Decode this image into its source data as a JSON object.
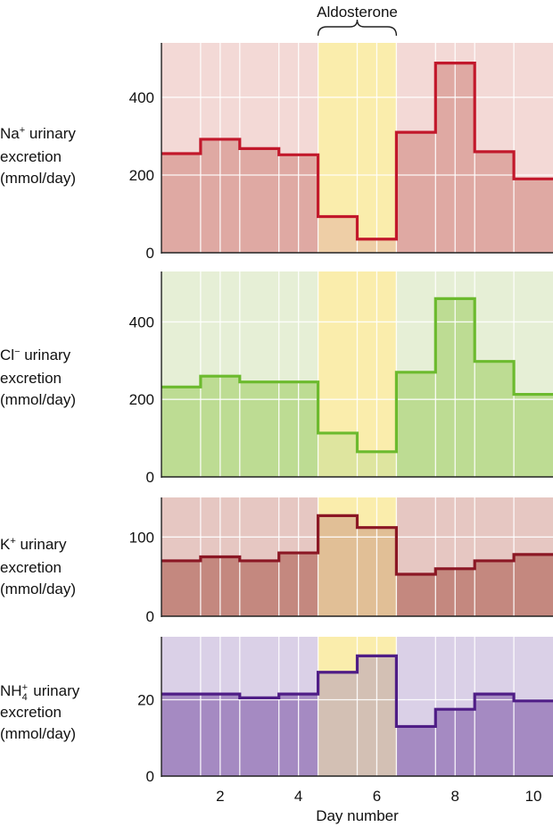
{
  "chart_data": [
    {
      "type": "step",
      "ylabel_ion": "Na",
      "ylabel_charge": "+",
      "ylabel_rest": " urinary",
      "ylabel_line2": "excretion",
      "ylabel_line3": "(mmol/day)",
      "x": [
        1,
        2,
        3,
        4,
        5,
        6,
        7,
        8,
        9,
        10
      ],
      "values": [
        255,
        292,
        268,
        252,
        93,
        35,
        310,
        488,
        260,
        190
      ],
      "ylim": [
        0,
        540
      ],
      "yticks": [
        0,
        200,
        400
      ],
      "color": "#c2182b",
      "fill": "#dfa9a3",
      "bg": "#f3d9d6"
    },
    {
      "type": "step",
      "ylabel_ion": "Cl",
      "ylabel_charge": "−",
      "ylabel_rest": " urinary",
      "ylabel_line2": "excretion",
      "ylabel_line3": "(mmol/day)",
      "x": [
        1,
        2,
        3,
        4,
        5,
        6,
        7,
        8,
        9,
        10
      ],
      "values": [
        232,
        260,
        245,
        245,
        113,
        65,
        270,
        460,
        298,
        213
      ],
      "ylim": [
        0,
        530
      ],
      "yticks": [
        0,
        200,
        400
      ],
      "color": "#6cba2e",
      "fill": "#bddc93",
      "bg": "#e6efd6"
    },
    {
      "type": "step",
      "ylabel_ion": "K",
      "ylabel_charge": "+",
      "ylabel_rest": " urinary",
      "ylabel_line2": "excretion",
      "ylabel_line3": "(mmol/day)",
      "x": [
        1,
        2,
        3,
        4,
        5,
        6,
        7,
        8,
        9,
        10
      ],
      "values": [
        70,
        75,
        70,
        80,
        127,
        112,
        53,
        60,
        70,
        78
      ],
      "ylim": [
        0,
        150
      ],
      "yticks": [
        0,
        100
      ],
      "color": "#8b1724",
      "fill": "#c4887f",
      "bg": "#e6c7c2"
    },
    {
      "type": "step",
      "ylabel_ion": "NH",
      "ylabel_sub": "4",
      "ylabel_charge": "+",
      "ylabel_rest": " urinary",
      "ylabel_line2": "excretion",
      "ylabel_line3": "(mmol/day)",
      "x": [
        1,
        2,
        3,
        4,
        5,
        6,
        7,
        8,
        9,
        10
      ],
      "values": [
        21.5,
        21.5,
        20.5,
        21.5,
        27.2,
        31.5,
        13,
        17.5,
        21.5,
        19.7
      ],
      "ylim": [
        0,
        36.5
      ],
      "yticks": [
        0,
        20
      ],
      "color": "#4f1d86",
      "fill": "#a58ac2",
      "bg": "#dad0e7"
    }
  ],
  "shared": {
    "x_ticks": [
      2,
      4,
      6,
      8,
      10
    ],
    "xlabel": "Day number",
    "annotation": "Aldosterone",
    "annotation_days": [
      5,
      6
    ],
    "highlight_color": "#fbeeb0",
    "highlight_overlay": "rgba(250,236,170,0.55)"
  }
}
